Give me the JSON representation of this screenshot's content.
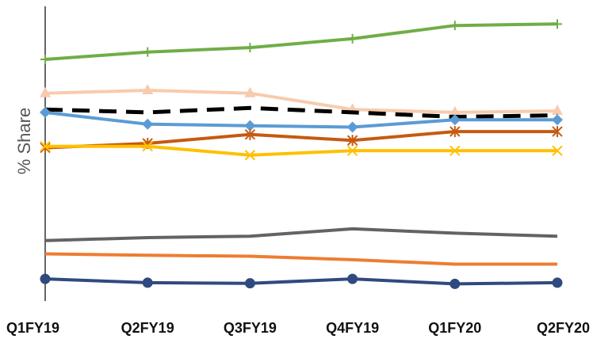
{
  "chart_data": {
    "type": "line",
    "title": "",
    "xlabel": "",
    "ylabel": "% Share",
    "categories": [
      "Q1FY19",
      "Q2FY19",
      "Q3FY19",
      "Q4FY19",
      "Q1FY20",
      "Q2FY20"
    ],
    "ylim": [
      0,
      100
    ],
    "grid": false,
    "legend": "none",
    "series": [
      {
        "color": "#70AD47",
        "marker": "plus",
        "dash": false,
        "values": [
          82,
          84.5,
          86,
          89,
          93.5,
          94
        ]
      },
      {
        "color": "#F8CBAD",
        "marker": "triangle",
        "dash": false,
        "values": [
          70.5,
          71.5,
          70.5,
          65,
          64,
          64.5
        ]
      },
      {
        "color": "#000000",
        "marker": "none",
        "dash": true,
        "values": [
          65,
          64,
          65.5,
          64,
          62.5,
          63
        ]
      },
      {
        "color": "#5B9BD5",
        "marker": "diamond",
        "dash": false,
        "values": [
          64,
          60,
          59.5,
          59,
          61.5,
          61.5
        ]
      },
      {
        "color": "#C55A11",
        "marker": "asterisk",
        "dash": false,
        "values": [
          52,
          53.5,
          56.5,
          54.5,
          57.5,
          57.5
        ]
      },
      {
        "color": "#FFC000",
        "marker": "x",
        "dash": false,
        "values": [
          52.5,
          52.5,
          49.5,
          51,
          51,
          51
        ]
      },
      {
        "color": "#636363",
        "marker": "none",
        "dash": false,
        "values": [
          20.5,
          21.5,
          22,
          24.5,
          23,
          22
        ]
      },
      {
        "color": "#ED7D31",
        "marker": "none",
        "dash": false,
        "values": [
          16,
          15.5,
          15.2,
          14,
          12.5,
          12.5
        ]
      },
      {
        "color": "#2F4A7F",
        "marker": "circle",
        "dash": false,
        "values": [
          7.5,
          6.2,
          6,
          7.5,
          5.8,
          6.2
        ]
      }
    ]
  }
}
